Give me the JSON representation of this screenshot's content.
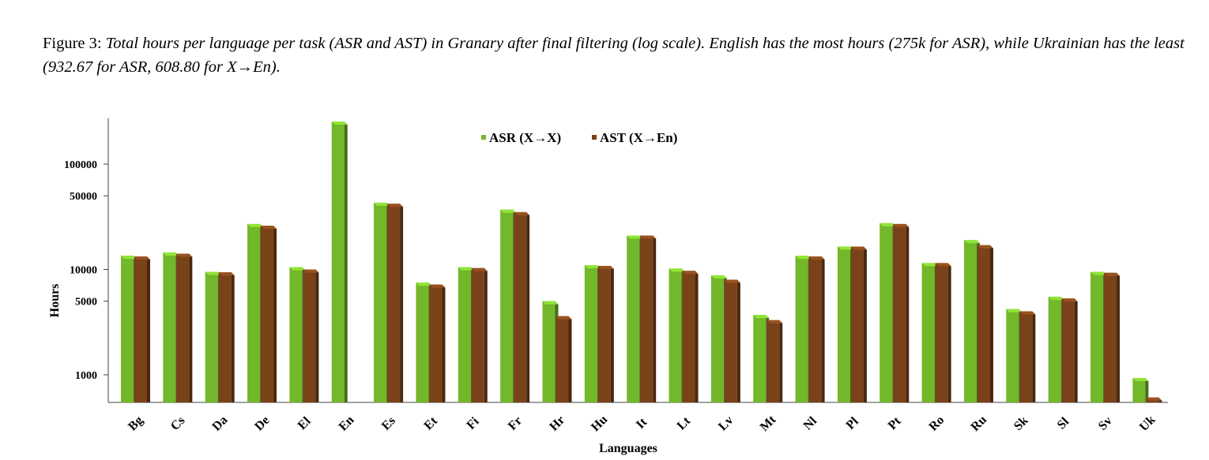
{
  "caption": {
    "label": "Figure 3:",
    "text": "Total hours per language per task (ASR and AST) in Granary after final filtering (log scale). English has the most hours (275k for ASR), while Ukrainian has the least (932.67 for ASR, 608.80 for X→En)."
  },
  "chart_data": {
    "type": "bar",
    "title": "",
    "xlabel": "Languages",
    "ylabel": "Hours",
    "yscale": "log",
    "ylim": [
      600,
      275000
    ],
    "yticks": [
      1000,
      5000,
      10000,
      50000,
      100000
    ],
    "ytick_labels": [
      "1000",
      "5000",
      "10000",
      "50000",
      "100000"
    ],
    "grid": false,
    "legend_position": "top-center",
    "categories": [
      "Bg",
      "Cs",
      "Da",
      "De",
      "El",
      "En",
      "Es",
      "Et",
      "Fi",
      "Fr",
      "Hr",
      "Hu",
      "It",
      "Lt",
      "Lv",
      "Mt",
      "Nl",
      "Pl",
      "Pt",
      "Ro",
      "Ru",
      "Sk",
      "Sl",
      "Sv",
      "Uk"
    ],
    "series": [
      {
        "name": "ASR (X→X)",
        "color": "#73b72b",
        "values": [
          13500,
          14500,
          9500,
          27000,
          10500,
          275000,
          43000,
          7500,
          10500,
          37000,
          5000,
          11000,
          21000,
          10200,
          8800,
          3700,
          13500,
          16500,
          27500,
          11500,
          19000,
          4200,
          5500,
          9500,
          932.67
        ]
      },
      {
        "name": "AST (X→En)",
        "color": "#7a4219",
        "values": [
          13300,
          14100,
          9400,
          26000,
          10000,
          null,
          42000,
          7200,
          10300,
          35000,
          3600,
          10800,
          21000,
          9700,
          8000,
          3300,
          13300,
          16500,
          27000,
          11500,
          17000,
          4000,
          5300,
          9300,
          608.8
        ]
      }
    ]
  }
}
